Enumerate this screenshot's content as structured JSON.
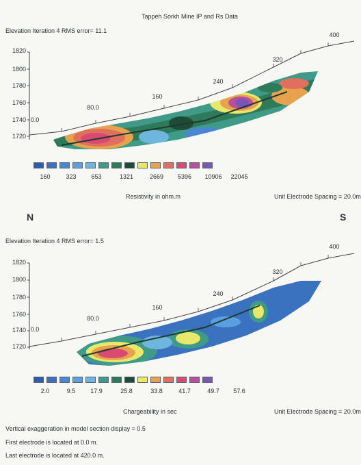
{
  "title": "Tappeh Sorkh Mine IP and Rs Data",
  "compass": {
    "left": "N",
    "right": "S"
  },
  "panels": [
    {
      "header": "Elevation Iteration 4 RMS error= 11.1",
      "y_ticks": [
        "1820",
        "1800",
        "1780",
        "1760",
        "1740",
        "1720"
      ],
      "x_ticks": [
        "0.0",
        "80.0",
        "160",
        "240",
        "320",
        "400"
      ],
      "legend_colors": [
        "#2c5ea8",
        "#3a72c0",
        "#4a86d2",
        "#5aa0e0",
        "#6fb6df",
        "#3f9a88",
        "#2f7a5a",
        "#1e4a38",
        "#e8e86a",
        "#e8a24e",
        "#e0705e",
        "#d94a72",
        "#b84f9a",
        "#7a55b8"
      ],
      "legend_values": [
        "160",
        "323",
        "653",
        "1321",
        "2669",
        "5396",
        "10906",
        "22045"
      ],
      "unit_label": "Resistivity in ohm.m",
      "spacing": "Unit Electrode Spacing = 20.0m"
    },
    {
      "header": "Elevation Iteration 4 RMS error= 1.5",
      "y_ticks": [
        "1820",
        "1800",
        "1780",
        "1760",
        "1740",
        "1720"
      ],
      "x_ticks": [
        "0.0",
        "80.0",
        "160",
        "240",
        "320",
        "400"
      ],
      "legend_colors": [
        "#2c5ea8",
        "#3a72c0",
        "#4a86d2",
        "#5aa0e0",
        "#6fb6df",
        "#3f9a88",
        "#2f7a5a",
        "#1e4a38",
        "#e8e86a",
        "#e8a24e",
        "#e0705e",
        "#d94a72",
        "#b84f9a",
        "#7a55b8"
      ],
      "legend_values": [
        "2.0",
        "9.5",
        "17.9",
        "25.8",
        "33.8",
        "41.7",
        "49.7",
        "57.6"
      ],
      "unit_label": "Chargeability in sec",
      "spacing": "Unit Electrode Spacing = 20.0m"
    }
  ],
  "footer": [
    "Vertical exaggeration in model section display = 0.5",
    "First electrode is located at 0.0 m.",
    "Last electrode is located at 420.0 m."
  ]
}
